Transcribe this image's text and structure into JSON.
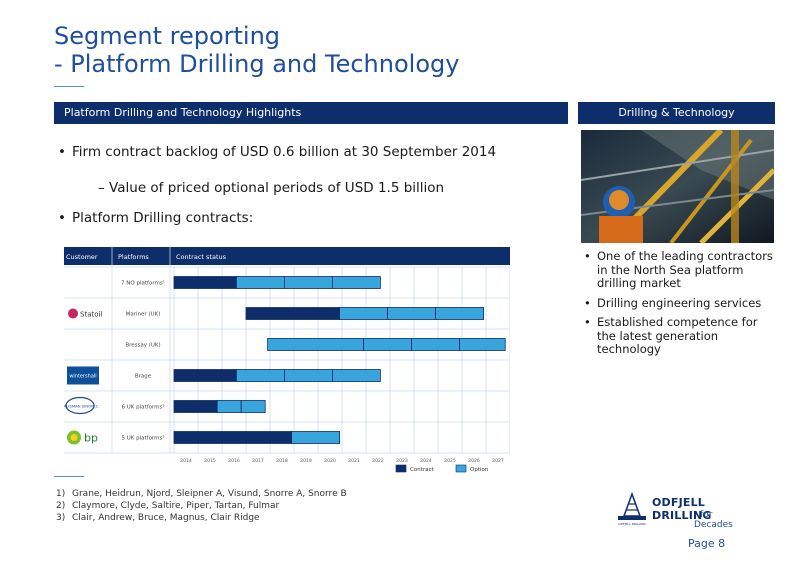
{
  "slide": {
    "title_line1": "Segment reporting",
    "title_line2": "- Platform Drilling and Technology",
    "highlights_header": "Platform Drilling and Technology Highlights",
    "side_header": "Drilling & Technology",
    "page_number": "Page 8"
  },
  "bullets": {
    "b1": "Firm contract backlog of USD 0.6 billion at 30 September 2014",
    "b2": "Value of priced optional periods of USD 1.5 billion",
    "b3": "Platform Drilling contracts:"
  },
  "side_points": [
    "One of the leading contractors in the North Sea platform drilling market",
    "Drilling engineering services",
    "Established competence for the latest generation technology"
  ],
  "footnotes": [
    {
      "n": "1)",
      "text": "Grane, Heidrun, Njord, Sleipner A, Visund, Snorre A, Snorre B"
    },
    {
      "n": "2)",
      "text": "Claymore, Clyde, Saltire, Piper, Tartan, Fulmar"
    },
    {
      "n": "3)",
      "text": "Clair, Andrew, Bruce, Magnus, Clair Ridge"
    }
  ],
  "logo": {
    "name": "ODFJELL DRILLING",
    "tagline": "- for Decades",
    "crest_text": "ODFJELL DRILLING"
  },
  "colors": {
    "navy": "#0e2e6b",
    "contract": "#0e2e6b",
    "option": "#38a6dc",
    "title_blue": "#1f4e9a",
    "grid": "#a9cbe6"
  },
  "chart_data": {
    "type": "gantt",
    "headers": {
      "customer": "Customer",
      "platforms": "Platforms",
      "status": "Contract status"
    },
    "years": [
      "2014",
      "2015",
      "2016",
      "2017",
      "2018",
      "2019",
      "2020",
      "2021",
      "2022",
      "2023",
      "2024",
      "2025",
      "2026",
      "2027"
    ],
    "customer_logos": [
      {
        "text": "Statoil",
        "rows": [
          0,
          1,
          2
        ]
      },
      {
        "text": "wintershall",
        "rows": [
          3,
          3
        ]
      },
      {
        "text": "TALISMAN SINOPEC",
        "rows": [
          4,
          4
        ]
      },
      {
        "text": "bp",
        "rows": [
          5,
          5
        ]
      }
    ],
    "rows": [
      {
        "platform": "7 NO platforms¹",
        "segments": [
          {
            "kind": "contract",
            "start": 2014.0,
            "end": 2016.6
          },
          {
            "kind": "option",
            "start": 2016.6,
            "end": 2018.6
          },
          {
            "kind": "option",
            "start": 2018.6,
            "end": 2020.6
          },
          {
            "kind": "option",
            "start": 2020.6,
            "end": 2022.6
          }
        ]
      },
      {
        "platform": "Mariner (UK)",
        "segments": [
          {
            "kind": "contract",
            "start": 2017.0,
            "end": 2020.9
          },
          {
            "kind": "option",
            "start": 2020.9,
            "end": 2022.9
          },
          {
            "kind": "option",
            "start": 2022.9,
            "end": 2024.9
          },
          {
            "kind": "option",
            "start": 2024.9,
            "end": 2026.9
          }
        ]
      },
      {
        "platform": "Bressay (UK)",
        "segments": [
          {
            "kind": "option",
            "start": 2017.9,
            "end": 2021.9
          },
          {
            "kind": "option",
            "start": 2021.9,
            "end": 2023.9
          },
          {
            "kind": "option",
            "start": 2023.9,
            "end": 2025.9
          },
          {
            "kind": "option",
            "start": 2025.9,
            "end": 2027.8
          }
        ]
      },
      {
        "platform": "Brage",
        "segments": [
          {
            "kind": "contract",
            "start": 2014.0,
            "end": 2016.6
          },
          {
            "kind": "option",
            "start": 2016.6,
            "end": 2018.6
          },
          {
            "kind": "option",
            "start": 2018.6,
            "end": 2020.6
          },
          {
            "kind": "option",
            "start": 2020.6,
            "end": 2022.6
          }
        ]
      },
      {
        "platform": "6 UK platforms²",
        "segments": [
          {
            "kind": "contract",
            "start": 2014.0,
            "end": 2015.8
          },
          {
            "kind": "option",
            "start": 2015.8,
            "end": 2016.8
          },
          {
            "kind": "option",
            "start": 2016.8,
            "end": 2017.8
          }
        ]
      },
      {
        "platform": "5 UK platforms³",
        "segments": [
          {
            "kind": "contract",
            "start": 2014.0,
            "end": 2018.9
          },
          {
            "kind": "option",
            "start": 2018.9,
            "end": 2020.9
          }
        ]
      }
    ],
    "legend": [
      {
        "kind": "contract",
        "label": "Contract"
      },
      {
        "kind": "option",
        "label": "Option"
      }
    ]
  }
}
